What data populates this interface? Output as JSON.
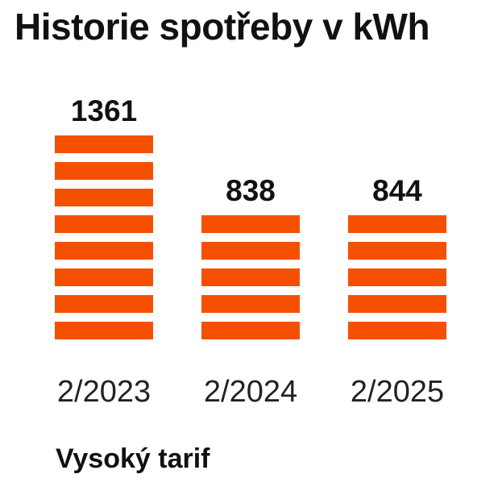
{
  "chart_data": {
    "type": "bar",
    "title": "Historie spotřeby v kWh",
    "categories": [
      "2/2023",
      "2/2024",
      "2/2025"
    ],
    "series": [
      {
        "name": "Vysoký tarif",
        "values": [
          1361,
          838,
          844
        ],
        "color": "#f55000"
      }
    ],
    "bar_style": "segmented-stripes",
    "axis_visible": false,
    "grid": false
  }
}
